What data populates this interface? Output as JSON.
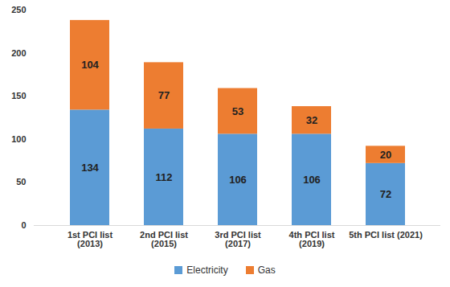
{
  "chart_data": {
    "type": "bar",
    "stacked": true,
    "data_labels": true,
    "grid": false,
    "legend": "bottom",
    "categories": [
      "1st PCI list\n(2013)",
      "2nd PCI list\n(2015)",
      "3rd PCI list\n(2017)",
      "4th PCI list\n(2019)",
      "5th PCI list (2021)"
    ],
    "series": [
      {
        "name": "Electricity",
        "color": "#5b9bd5",
        "values": [
          134,
          112,
          106,
          106,
          72
        ]
      },
      {
        "name": "Gas",
        "color": "#ed7d31",
        "values": [
          104,
          77,
          53,
          32,
          20
        ]
      }
    ],
    "ylim": [
      0,
      250
    ],
    "yticks": [
      0,
      50,
      100,
      150,
      200,
      250
    ]
  }
}
